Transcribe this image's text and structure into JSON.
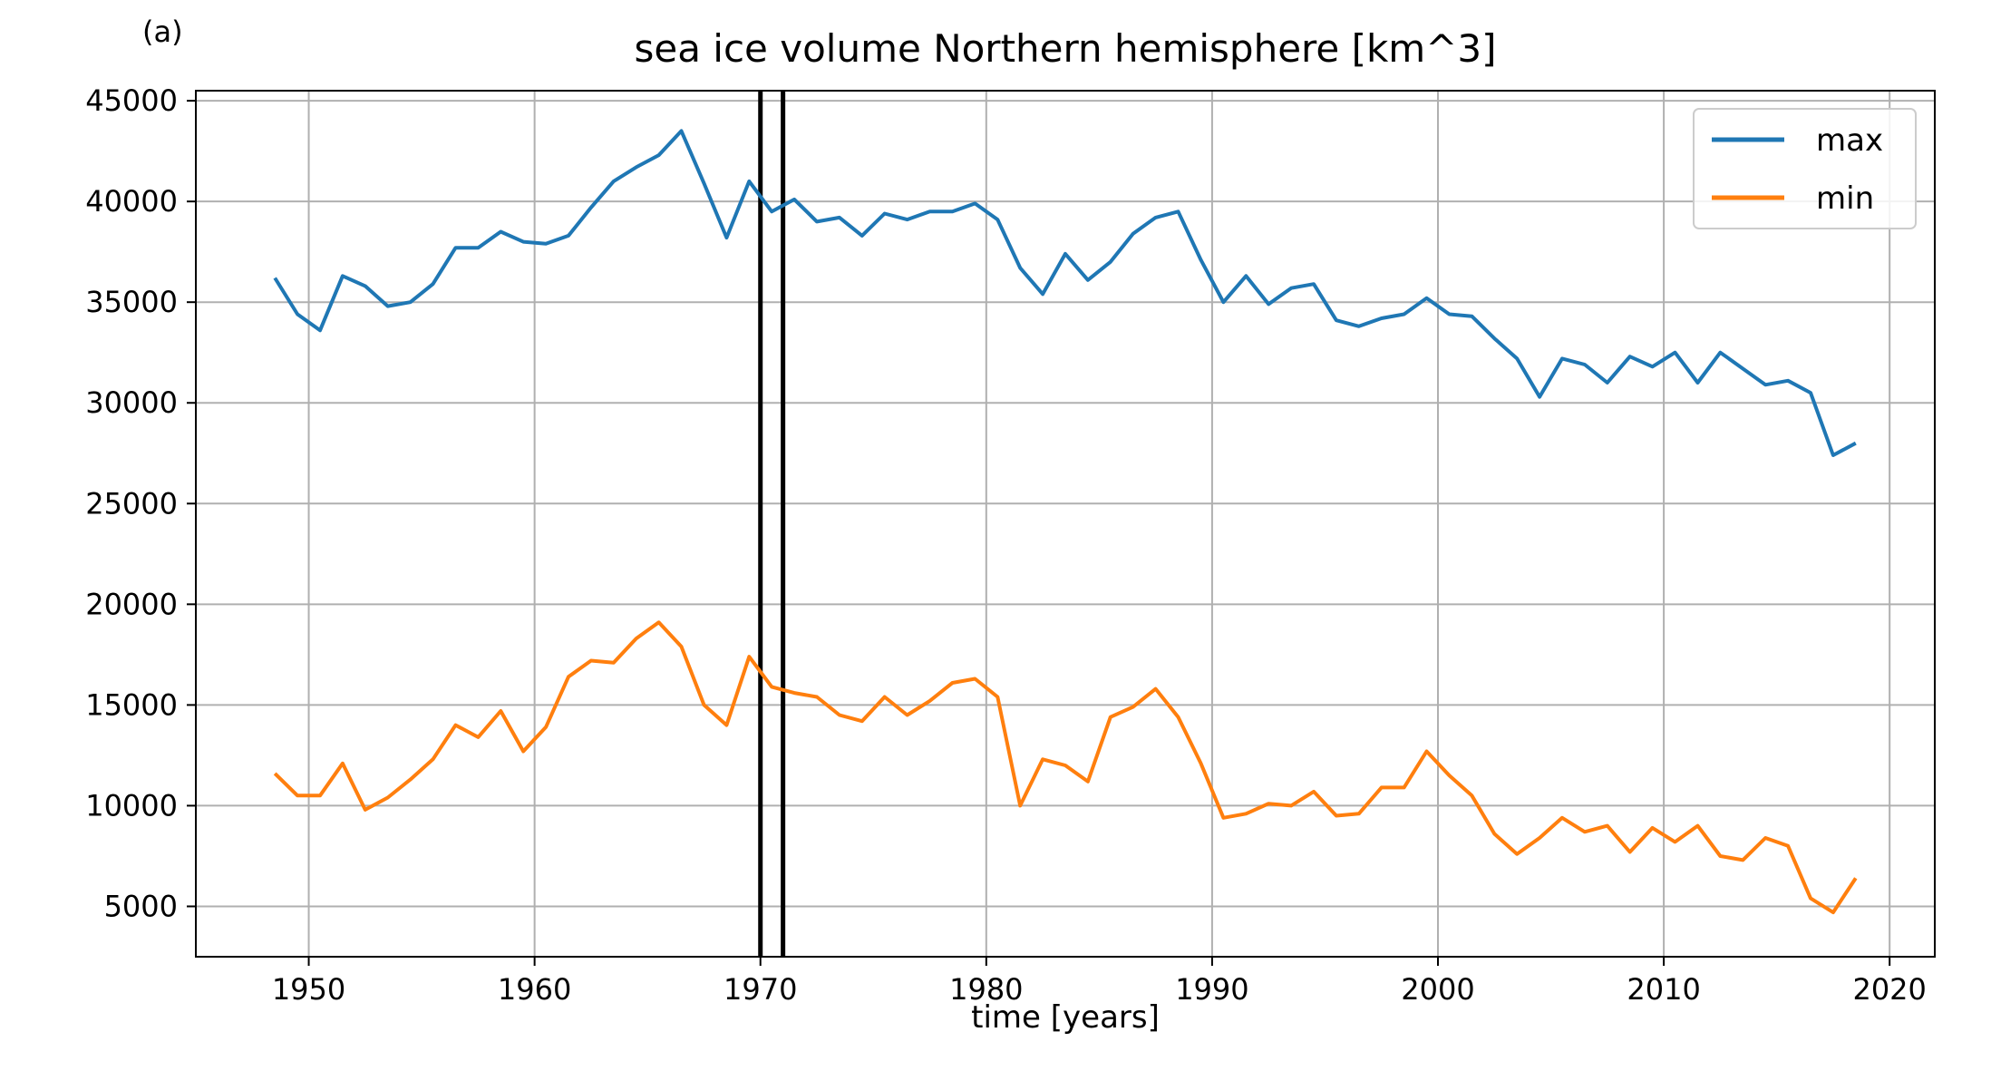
{
  "chart_data": {
    "type": "line",
    "panel_label": "(a)",
    "title": "sea ice volume Northern hemisphere [km^3]",
    "xlabel": "time [years]",
    "ylabel": "",
    "xlim": [
      1945,
      2022
    ],
    "ylim": [
      2500,
      45500
    ],
    "xticks": [
      1950,
      1960,
      1970,
      1980,
      1990,
      2000,
      2010,
      2020
    ],
    "yticks": [
      5000,
      10000,
      15000,
      20000,
      25000,
      30000,
      35000,
      40000,
      45000
    ],
    "grid": true,
    "legend_position": "top-right",
    "vertical_lines": [
      1970.0,
      1971.0
    ],
    "x": [
      1948.5,
      1949.5,
      1950.5,
      1951.5,
      1952.5,
      1953.5,
      1954.5,
      1955.5,
      1956.5,
      1957.5,
      1958.5,
      1959.5,
      1960.5,
      1961.5,
      1962.5,
      1963.5,
      1964.5,
      1965.5,
      1966.5,
      1967.5,
      1968.5,
      1969.5,
      1970.5,
      1971.5,
      1972.5,
      1973.5,
      1974.5,
      1975.5,
      1976.5,
      1977.5,
      1978.5,
      1979.5,
      1980.5,
      1981.5,
      1982.5,
      1983.5,
      1984.5,
      1985.5,
      1986.5,
      1987.5,
      1988.5,
      1989.5,
      1990.5,
      1991.5,
      1992.5,
      1993.5,
      1994.5,
      1995.5,
      1996.5,
      1997.5,
      1998.5,
      1999.5,
      2000.5,
      2001.5,
      2002.5,
      2003.5,
      2004.5,
      2005.5,
      2006.5,
      2007.5,
      2008.5,
      2009.5,
      2010.5,
      2011.5,
      2012.5,
      2013.5,
      2014.5,
      2015.5,
      2016.5,
      2017.5,
      2018.5
    ],
    "series": [
      {
        "name": "max",
        "color": "#1f77b4",
        "values": [
          36200,
          34400,
          33600,
          36300,
          35800,
          34800,
          35000,
          35900,
          37700,
          37700,
          38500,
          38000,
          37900,
          38300,
          39700,
          41000,
          41700,
          42300,
          43500,
          40900,
          38200,
          41000,
          39500,
          40100,
          39000,
          39200,
          38300,
          39400,
          39100,
          39500,
          39500,
          39900,
          39100,
          36700,
          35400,
          37400,
          36100,
          37000,
          38400,
          39200,
          39500,
          37100,
          35000,
          36300,
          34900,
          35700,
          35900,
          34100,
          33800,
          34200,
          34400,
          35200,
          34400,
          34300,
          33200,
          32200,
          30300,
          32200,
          31900,
          31000,
          32300,
          31800,
          32500,
          31000,
          32500,
          31700,
          30900,
          31100,
          30500,
          27400,
          28000
        ]
      },
      {
        "name": "min",
        "color": "#ff7f0e",
        "values": [
          11600,
          10500,
          10500,
          12100,
          9800,
          10400,
          11300,
          12300,
          14000,
          13400,
          14700,
          12700,
          13900,
          16400,
          17200,
          17100,
          18300,
          19100,
          17900,
          15000,
          14000,
          17400,
          15900,
          15600,
          15400,
          14500,
          14200,
          15400,
          14500,
          15200,
          16100,
          16300,
          15400,
          10000,
          12300,
          12000,
          11200,
          14400,
          14900,
          15800,
          14400,
          12100,
          9400,
          9600,
          10100,
          10000,
          10700,
          9500,
          9600,
          10900,
          10900,
          12700,
          11500,
          10500,
          8600,
          7600,
          8400,
          9400,
          8700,
          9000,
          7700,
          8900,
          8200,
          9000,
          7500,
          7300,
          8400,
          8000,
          5400,
          4700,
          6400
        ]
      }
    ]
  }
}
